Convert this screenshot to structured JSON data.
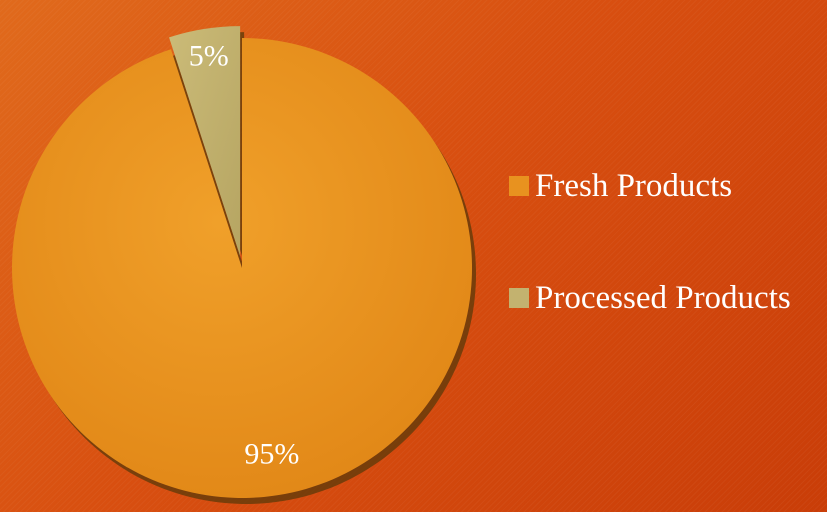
{
  "chart_data": {
    "type": "pie",
    "slices": [
      {
        "label": "Fresh Products",
        "value": 95,
        "display": "95%",
        "color": "#e8921f"
      },
      {
        "label": "Processed Products",
        "value": 5,
        "display": "5%",
        "color": "#c3b26f"
      }
    ],
    "legend": {
      "position": "right",
      "items": [
        "Fresh Products",
        "Processed Products"
      ]
    },
    "exploded_slice": "Processed Products"
  },
  "colors": {
    "background": "#d9520e",
    "label_text": "#ffffff"
  }
}
